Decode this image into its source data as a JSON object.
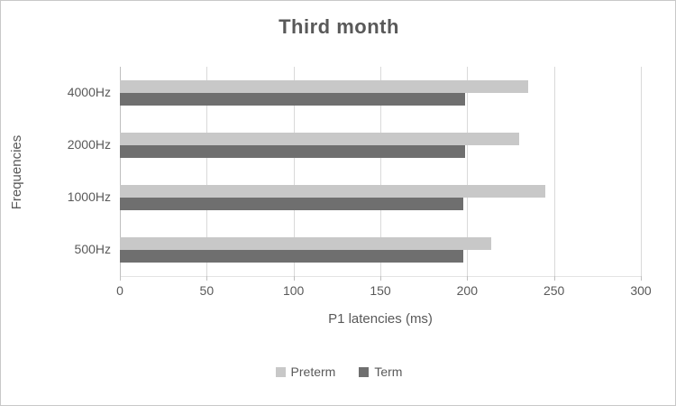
{
  "chart_data": {
    "type": "bar",
    "orientation": "horizontal",
    "title": "Third month",
    "xlabel": "P1 latencies (ms)",
    "ylabel": "Frequencies",
    "categories": [
      "4000Hz",
      "2000Hz",
      "1000Hz",
      "500Hz"
    ],
    "series": [
      {
        "name": "Preterm",
        "color": "#c8c8c8",
        "values": [
          235,
          230,
          245,
          214
        ]
      },
      {
        "name": "Term",
        "color": "#6f6f6f",
        "values": [
          199,
          199,
          198,
          198
        ]
      }
    ],
    "x_ticks": [
      "0",
      "50",
      "100",
      "150",
      "200",
      "250",
      "300"
    ],
    "xlim": [
      0,
      300
    ],
    "grid": true,
    "legend_position": "bottom",
    "colors": {
      "text": "#595959",
      "gridline": "#d9d9d9",
      "axis_line": "#bfbfbf",
      "background": "#ffffff",
      "frame_border": "#c9c9c9"
    }
  }
}
